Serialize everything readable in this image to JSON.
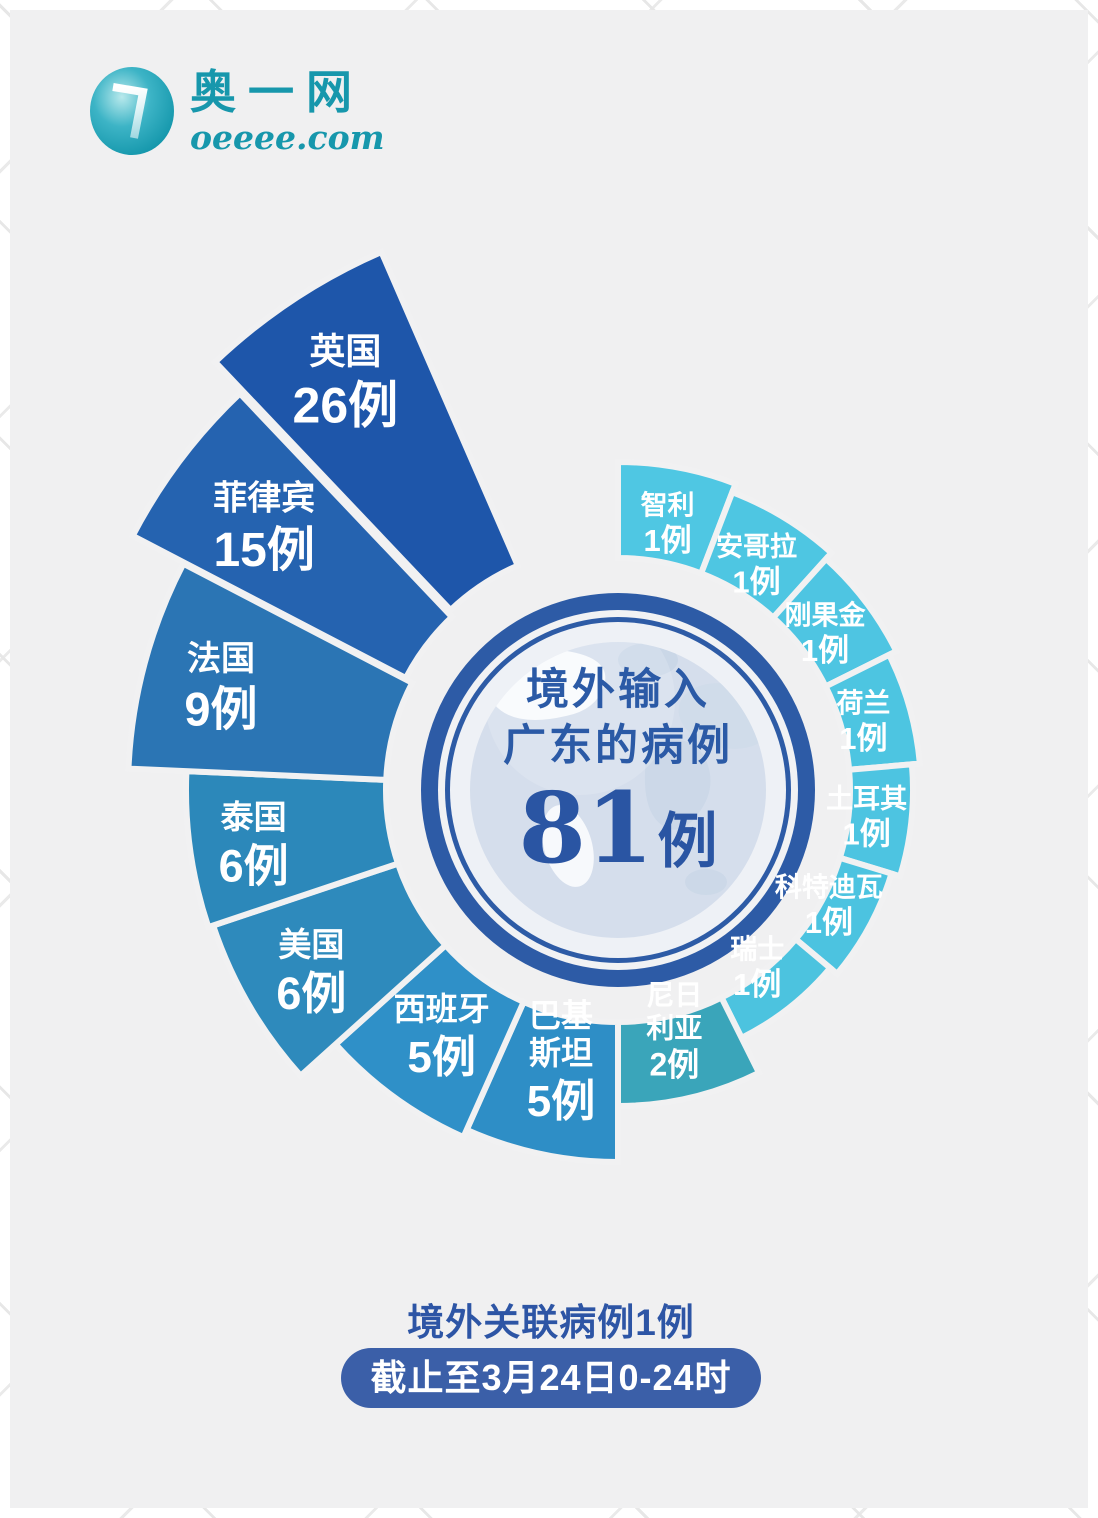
{
  "header": {
    "logo": {
      "name": "奥一网",
      "domain": "oeeee.com"
    }
  },
  "center_label": {
    "line1": "境外输入",
    "line2": "广东的病例",
    "total_number": "81",
    "total_unit": "例"
  },
  "chart_data": {
    "type": "rose",
    "title": "境外输入广东的病例81例",
    "total": 81,
    "unit": "例",
    "layout_hint": "nightingale rose wheel, segments clockwise from 12 o'clock ascending, radius encodes case count, UK and Philippines wedges exploded",
    "segments": [
      {
        "name": "智利",
        "value": 1,
        "label": "1例",
        "color": "#4fc7e3"
      },
      {
        "name": "安哥拉",
        "value": 1,
        "label": "1例",
        "color": "#4ec6e2"
      },
      {
        "name": "刚果金",
        "value": 1,
        "label": "1例",
        "color": "#4ec5e2"
      },
      {
        "name": "荷兰",
        "value": 1,
        "label": "1例",
        "color": "#4dc5e1"
      },
      {
        "name": "土耳其",
        "value": 1,
        "label": "1例",
        "color": "#4dc4e1"
      },
      {
        "name": "科特迪瓦",
        "value": 1,
        "label": "1例",
        "color": "#4cc3e0"
      },
      {
        "name": "瑞士",
        "value": 1,
        "label": "1例",
        "color": "#4cc3df"
      },
      {
        "name": "尼日利亚",
        "name_lines": [
          "尼日",
          "利亚"
        ],
        "value": 2,
        "label": "2例",
        "color": "#3aa5ba"
      },
      {
        "name": "巴基斯坦",
        "name_lines": [
          "巴基",
          "斯坦"
        ],
        "value": 5,
        "label": "5例",
        "color": "#2e8ec6"
      },
      {
        "name": "西班牙",
        "value": 5,
        "label": "5例",
        "color": "#2f90c8"
      },
      {
        "name": "美国",
        "value": 6,
        "label": "6例",
        "color": "#2e8abc"
      },
      {
        "name": "泰国",
        "value": 6,
        "label": "6例",
        "color": "#2c88ba"
      },
      {
        "name": "法国",
        "value": 9,
        "label": "9例",
        "color": "#2b75b4"
      },
      {
        "name": "菲律宾",
        "value": 15,
        "label": "15例",
        "color": "#2563b0"
      },
      {
        "name": "英国",
        "value": 26,
        "label": "26例",
        "color": "#1e56aa"
      }
    ]
  },
  "footer": {
    "related_note": "境外关联病例1例",
    "date_badge": "截止至3月24日0-24时"
  },
  "colors": {
    "ring_blue": "#2d5ba6",
    "center_text": "#2b5aa6",
    "badge_bg": "#3b5fa8",
    "card_bg": "#f0f0f1",
    "logo_teal": "#1797ac",
    "globe_ocean": "#d5deec",
    "segment_separator": "#f1f1f2"
  }
}
